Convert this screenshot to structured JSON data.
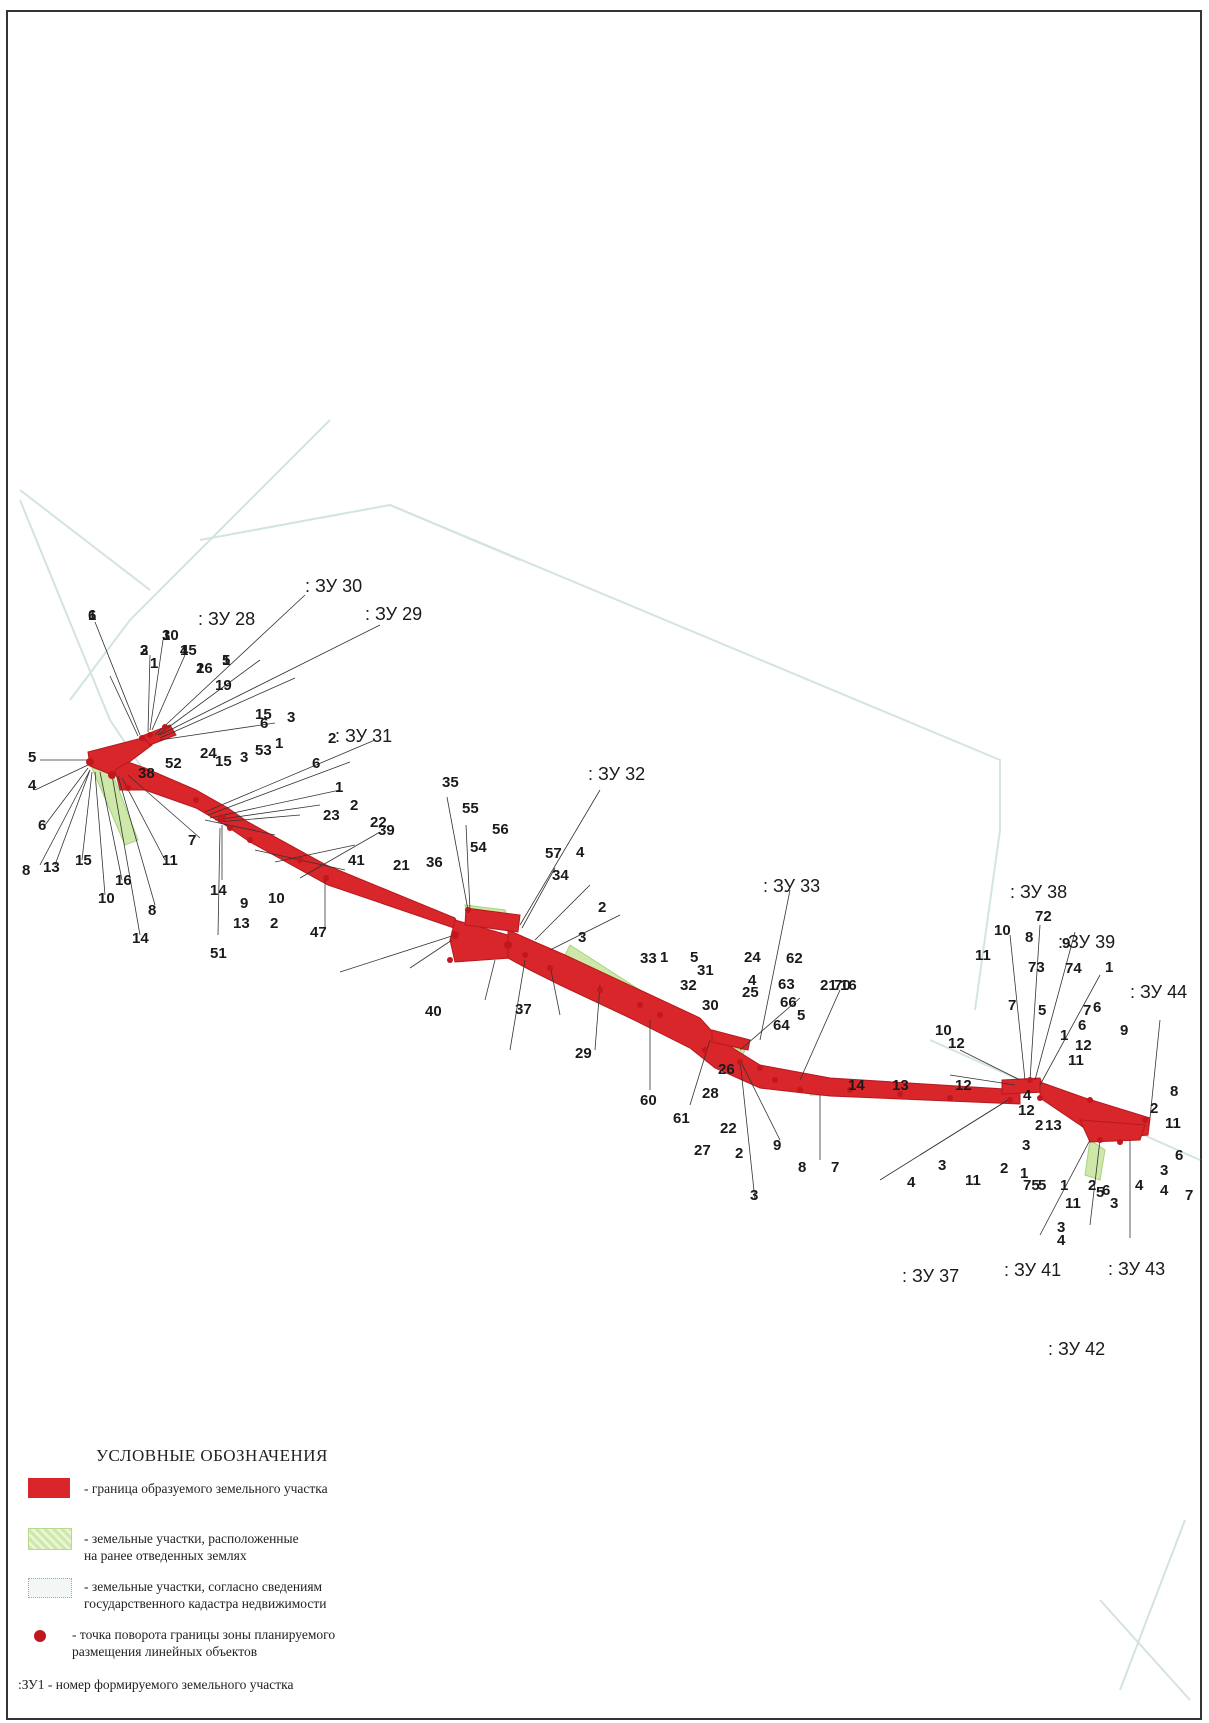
{
  "legend": {
    "title": "УСЛОВНЫЕ ОБОЗНАЧЕНИЯ",
    "items": [
      {
        "symbol": "red-fill",
        "text": "- граница образуемого земельного участка"
      },
      {
        "symbol": "green-hatch",
        "text": "- земельные участки, расположенные\nна ранее отведенных землях"
      },
      {
        "symbol": "grey-dotted",
        "text": "- земельные участки, согласно сведениям\nгосударственного кадастра недвижимости"
      },
      {
        "symbol": "red-dot",
        "text": "- точка поворота границы зоны планируемого\nразмещения линейных объектов"
      }
    ],
    "plot_note": ":ЗУ1 - номер формируемого земельного участка"
  },
  "plots": [
    ": ЗУ 28",
    ": ЗУ 30",
    ": ЗУ 29",
    ": ЗУ 31",
    ": ЗУ 32",
    ": ЗУ 33",
    ": ЗУ 38",
    ": ЗУ 39",
    ": ЗУ 44",
    ": ЗУ 37",
    ": ЗУ 41",
    ": ЗУ 43",
    ": ЗУ 42"
  ],
  "point_labels": [
    "6",
    "3",
    "3",
    "1",
    "4",
    "2",
    "5",
    "19",
    "5",
    "4",
    "6",
    "8",
    "13",
    "15",
    "10",
    "16",
    "14",
    "8",
    "11",
    "7",
    "14",
    "13",
    "9",
    "10",
    "2",
    "51",
    "47",
    "38",
    "52",
    "24",
    "53",
    "6",
    "15",
    "15",
    "3",
    "1",
    "3",
    "2",
    "6",
    "1",
    "2",
    "23",
    "22",
    "41",
    "21",
    "39",
    "40",
    "37",
    "36",
    "35",
    "55",
    "54",
    "56",
    "57",
    "34",
    "4",
    "2",
    "3",
    "33",
    "1",
    "5",
    "32",
    "31",
    "30",
    "29",
    "60",
    "61",
    "28",
    "27",
    "26",
    "25",
    "24",
    "4",
    "62",
    "63",
    "66",
    "64",
    "22",
    "2",
    "3",
    "5",
    "21",
    "70",
    "9",
    "8",
    "7",
    "16",
    "14",
    "13",
    "12",
    "11",
    "10",
    "72",
    "73",
    "74",
    "9",
    "8",
    "7",
    "1",
    "6",
    "5",
    "7",
    "12",
    "10",
    "1",
    "11",
    "12",
    "6",
    "9",
    "8",
    "2",
    "11",
    "3",
    "12",
    "4",
    "2",
    "13",
    "4",
    "3",
    "11",
    "2",
    "1",
    "75",
    "11",
    "5",
    "4",
    "3",
    "1",
    "2",
    "5",
    "6",
    "3",
    "4",
    "4",
    "3",
    "6",
    "7",
    "1",
    "10",
    "2",
    "1",
    "15",
    "16",
    "1"
  ],
  "colors": {
    "plot_fill": "#d8262a",
    "existing_land": "#cde8a8",
    "cadastre": "#c9ddd6",
    "points": "#c0181d"
  }
}
